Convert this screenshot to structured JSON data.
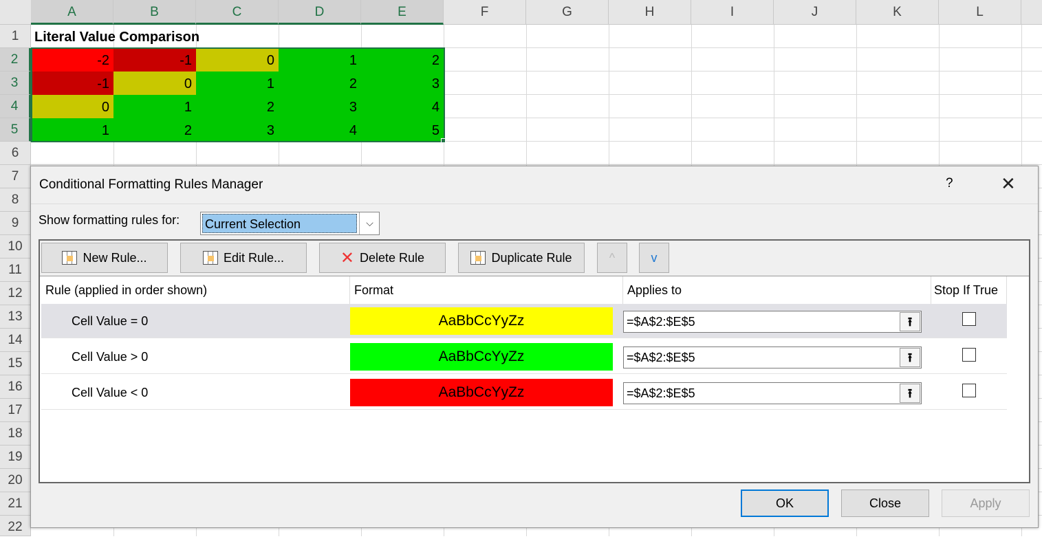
{
  "sheet": {
    "columns": [
      "A",
      "B",
      "C",
      "D",
      "E",
      "F",
      "G",
      "H",
      "I",
      "J",
      "K",
      "L"
    ],
    "rows": [
      "1",
      "2",
      "3",
      "4",
      "5",
      "6",
      "7",
      "8",
      "9",
      "10",
      "11",
      "12",
      "13",
      "14",
      "15",
      "16",
      "17",
      "18",
      "19",
      "20",
      "21",
      "22"
    ],
    "title": "Literal Value Comparison",
    "values": [
      [
        "-2",
        "-1",
        "0",
        "1",
        "2"
      ],
      [
        "-1",
        "0",
        "1",
        "2",
        "3"
      ],
      [
        "0",
        "1",
        "2",
        "3",
        "4"
      ],
      [
        "1",
        "2",
        "3",
        "4",
        "5"
      ]
    ],
    "colors": {
      "red": "#ff0000",
      "dark_red": "#c80000",
      "yellow": "#c8c800",
      "green": "#00c800",
      "accent": "#217346"
    }
  },
  "dialog": {
    "title": "Conditional Formatting Rules Manager",
    "help": "?",
    "close_icon": "close-icon",
    "show_label": "Show formatting rules for:",
    "show_value": "Current Selection",
    "toolbar": {
      "new": "New Rule...",
      "edit": "Edit Rule...",
      "delete": "Delete Rule",
      "duplicate": "Duplicate Rule",
      "up": "^",
      "down": "v"
    },
    "headers": {
      "rule": "Rule (applied in order shown)",
      "format": "Format",
      "applies": "Applies to",
      "stop": "Stop If True"
    },
    "rules": [
      {
        "rule": "Cell Value = 0",
        "preview": "AaBbCcYyZz",
        "color": "#ffff00",
        "applies": "=$A$2:$E$5",
        "stop": false
      },
      {
        "rule": "Cell Value > 0",
        "preview": "AaBbCcYyZz",
        "color": "#00ff00",
        "applies": "=$A$2:$E$5",
        "stop": false
      },
      {
        "rule": "Cell Value < 0",
        "preview": "AaBbCcYyZz",
        "color": "#ff0000",
        "applies": "=$A$2:$E$5",
        "stop": false
      }
    ],
    "buttons": {
      "ok": "OK",
      "close": "Close",
      "apply": "Apply"
    }
  }
}
